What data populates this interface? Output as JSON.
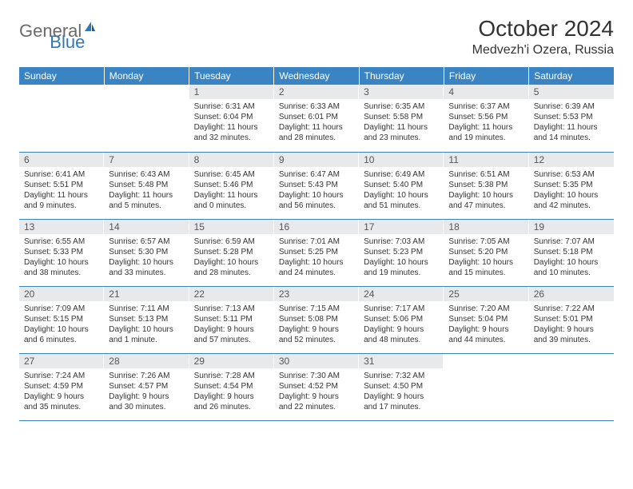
{
  "brand": {
    "text1": "General",
    "text2": "Blue"
  },
  "title": {
    "month": "October 2024",
    "location": "Medvezh'i Ozera, Russia"
  },
  "colors": {
    "header_bg": "#3b84c4",
    "header_text": "#ffffff",
    "daynum_bg": "#e8e9ea",
    "daynum_text": "#555555",
    "border": "#3b84c4",
    "logo_general": "#6a6a6a",
    "logo_blue": "#2f78b7"
  },
  "weekdays": [
    "Sunday",
    "Monday",
    "Tuesday",
    "Wednesday",
    "Thursday",
    "Friday",
    "Saturday"
  ],
  "weeks": [
    [
      null,
      null,
      {
        "n": "1",
        "sr": "6:31 AM",
        "ss": "6:04 PM",
        "dl": "11 hours and 32 minutes."
      },
      {
        "n": "2",
        "sr": "6:33 AM",
        "ss": "6:01 PM",
        "dl": "11 hours and 28 minutes."
      },
      {
        "n": "3",
        "sr": "6:35 AM",
        "ss": "5:58 PM",
        "dl": "11 hours and 23 minutes."
      },
      {
        "n": "4",
        "sr": "6:37 AM",
        "ss": "5:56 PM",
        "dl": "11 hours and 19 minutes."
      },
      {
        "n": "5",
        "sr": "6:39 AM",
        "ss": "5:53 PM",
        "dl": "11 hours and 14 minutes."
      }
    ],
    [
      {
        "n": "6",
        "sr": "6:41 AM",
        "ss": "5:51 PM",
        "dl": "11 hours and 9 minutes."
      },
      {
        "n": "7",
        "sr": "6:43 AM",
        "ss": "5:48 PM",
        "dl": "11 hours and 5 minutes."
      },
      {
        "n": "8",
        "sr": "6:45 AM",
        "ss": "5:46 PM",
        "dl": "11 hours and 0 minutes."
      },
      {
        "n": "9",
        "sr": "6:47 AM",
        "ss": "5:43 PM",
        "dl": "10 hours and 56 minutes."
      },
      {
        "n": "10",
        "sr": "6:49 AM",
        "ss": "5:40 PM",
        "dl": "10 hours and 51 minutes."
      },
      {
        "n": "11",
        "sr": "6:51 AM",
        "ss": "5:38 PM",
        "dl": "10 hours and 47 minutes."
      },
      {
        "n": "12",
        "sr": "6:53 AM",
        "ss": "5:35 PM",
        "dl": "10 hours and 42 minutes."
      }
    ],
    [
      {
        "n": "13",
        "sr": "6:55 AM",
        "ss": "5:33 PM",
        "dl": "10 hours and 38 minutes."
      },
      {
        "n": "14",
        "sr": "6:57 AM",
        "ss": "5:30 PM",
        "dl": "10 hours and 33 minutes."
      },
      {
        "n": "15",
        "sr": "6:59 AM",
        "ss": "5:28 PM",
        "dl": "10 hours and 28 minutes."
      },
      {
        "n": "16",
        "sr": "7:01 AM",
        "ss": "5:25 PM",
        "dl": "10 hours and 24 minutes."
      },
      {
        "n": "17",
        "sr": "7:03 AM",
        "ss": "5:23 PM",
        "dl": "10 hours and 19 minutes."
      },
      {
        "n": "18",
        "sr": "7:05 AM",
        "ss": "5:20 PM",
        "dl": "10 hours and 15 minutes."
      },
      {
        "n": "19",
        "sr": "7:07 AM",
        "ss": "5:18 PM",
        "dl": "10 hours and 10 minutes."
      }
    ],
    [
      {
        "n": "20",
        "sr": "7:09 AM",
        "ss": "5:15 PM",
        "dl": "10 hours and 6 minutes."
      },
      {
        "n": "21",
        "sr": "7:11 AM",
        "ss": "5:13 PM",
        "dl": "10 hours and 1 minute."
      },
      {
        "n": "22",
        "sr": "7:13 AM",
        "ss": "5:11 PM",
        "dl": "9 hours and 57 minutes."
      },
      {
        "n": "23",
        "sr": "7:15 AM",
        "ss": "5:08 PM",
        "dl": "9 hours and 52 minutes."
      },
      {
        "n": "24",
        "sr": "7:17 AM",
        "ss": "5:06 PM",
        "dl": "9 hours and 48 minutes."
      },
      {
        "n": "25",
        "sr": "7:20 AM",
        "ss": "5:04 PM",
        "dl": "9 hours and 44 minutes."
      },
      {
        "n": "26",
        "sr": "7:22 AM",
        "ss": "5:01 PM",
        "dl": "9 hours and 39 minutes."
      }
    ],
    [
      {
        "n": "27",
        "sr": "7:24 AM",
        "ss": "4:59 PM",
        "dl": "9 hours and 35 minutes."
      },
      {
        "n": "28",
        "sr": "7:26 AM",
        "ss": "4:57 PM",
        "dl": "9 hours and 30 minutes."
      },
      {
        "n": "29",
        "sr": "7:28 AM",
        "ss": "4:54 PM",
        "dl": "9 hours and 26 minutes."
      },
      {
        "n": "30",
        "sr": "7:30 AM",
        "ss": "4:52 PM",
        "dl": "9 hours and 22 minutes."
      },
      {
        "n": "31",
        "sr": "7:32 AM",
        "ss": "4:50 PM",
        "dl": "9 hours and 17 minutes."
      },
      null,
      null
    ]
  ],
  "labels": {
    "sunrise": "Sunrise:",
    "sunset": "Sunset:",
    "daylight": "Daylight:"
  }
}
